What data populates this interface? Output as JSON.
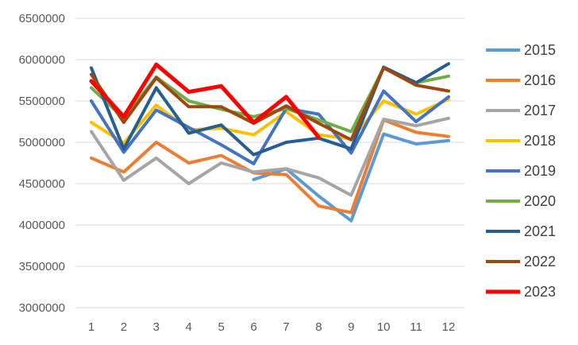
{
  "chart_data": {
    "type": "line",
    "title": "",
    "xlabel": "",
    "ylabel": "",
    "categories": [
      "1",
      "2",
      "3",
      "4",
      "5",
      "6",
      "7",
      "8",
      "9",
      "10",
      "11",
      "12"
    ],
    "ylim": [
      3000000,
      6500000
    ],
    "yticks": [
      3000000,
      3500000,
      4000000,
      4500000,
      5000000,
      5500000,
      6000000,
      6500000
    ],
    "ytick_labels": [
      "3000000",
      "3500000",
      "4000000",
      "4500000",
      "5000000",
      "5500000",
      "6000000",
      "6500000"
    ],
    "grid": "horizontal",
    "legend_position": "right",
    "series": [
      {
        "name": "2015",
        "color": "#5B9BD5",
        "values": [
          null,
          null,
          null,
          null,
          null,
          4550000,
          4680000,
          4350000,
          4050000,
          5100000,
          4980000,
          5020000
        ]
      },
      {
        "name": "2016",
        "color": "#ED7D31",
        "values": [
          4810000,
          4640000,
          5000000,
          4750000,
          4840000,
          4630000,
          4610000,
          4230000,
          4150000,
          5270000,
          5120000,
          5070000
        ]
      },
      {
        "name": "2017",
        "color": "#A5A5A5",
        "values": [
          5130000,
          4540000,
          4810000,
          4500000,
          4750000,
          4640000,
          4680000,
          4570000,
          4360000,
          5280000,
          5200000,
          5290000
        ]
      },
      {
        "name": "2018",
        "color": "#FFC000",
        "values": [
          5240000,
          4990000,
          5450000,
          5150000,
          5170000,
          5090000,
          5370000,
          5090000,
          5040000,
          5500000,
          5340000,
          5520000
        ]
      },
      {
        "name": "2019",
        "color": "#4472C4",
        "values": [
          5500000,
          4880000,
          5390000,
          5180000,
          4970000,
          4740000,
          5410000,
          5340000,
          4870000,
          5620000,
          5250000,
          5550000
        ]
      },
      {
        "name": "2020",
        "color": "#70AD47",
        "values": [
          5660000,
          5290000,
          5790000,
          5500000,
          5400000,
          5310000,
          5410000,
          5270000,
          5130000,
          5900000,
          5720000,
          5800000
        ]
      },
      {
        "name": "2021",
        "color": "#255E91",
        "values": [
          5900000,
          4920000,
          5660000,
          5110000,
          5210000,
          4850000,
          5000000,
          5050000,
          4920000,
          5910000,
          5720000,
          5950000
        ]
      },
      {
        "name": "2022",
        "color": "#9E480E",
        "values": [
          5820000,
          5240000,
          5780000,
          5430000,
          5430000,
          5230000,
          5440000,
          5230000,
          5030000,
          5900000,
          5690000,
          5620000
        ]
      },
      {
        "name": "2023",
        "color": "#FF0000",
        "values": [
          5740000,
          5310000,
          5940000,
          5610000,
          5680000,
          5240000,
          5550000,
          5060000,
          null,
          null,
          null,
          null
        ]
      }
    ]
  }
}
